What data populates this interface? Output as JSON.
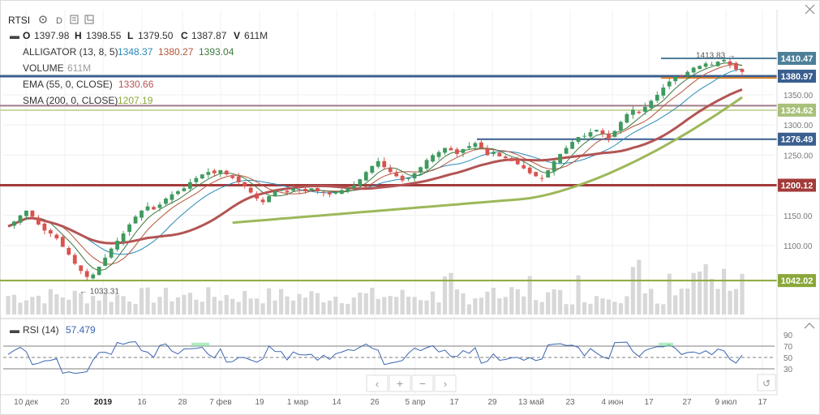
{
  "symbol": "RTSI",
  "interval": "D",
  "ohlc": {
    "o_label": "O",
    "o": "1397.98",
    "h_label": "H",
    "h": "1398.55",
    "l_label": "L",
    "l": "1379.50",
    "c_label": "C",
    "c": "1387.87",
    "v_label": "V",
    "v": "611M"
  },
  "indicators": {
    "alligator": {
      "label": "ALLIGATOR (13, 8, 5)",
      "v1": "1348.37",
      "v2": "1380.27",
      "v3": "1393.04"
    },
    "volume": {
      "label": "VOLUME",
      "value": "611M"
    },
    "ema": {
      "label": "EMA (55, 0, CLOSE)",
      "value": "1330.66"
    },
    "sma": {
      "label": "SMA (200, 0, CLOSE)",
      "value": "1207.19"
    }
  },
  "rsi": {
    "label": "RSI (14)",
    "value": "57.479"
  },
  "colors": {
    "up": "#3f9a5e",
    "down": "#d9534f",
    "alligator_jaw": "#2a8ab8",
    "alligator_teeth": "#b5553a",
    "alligator_lips": "#3c7a3f",
    "ema": "#b35454",
    "sma": "#9db85a",
    "volume": "#d8d8d8",
    "level_blue": "#3a5f8f",
    "level_steel": "#4d7f99",
    "level_red": "#a33a3a",
    "level_green": "#8aa83a",
    "rsi_line": "#3b64b0",
    "rsi_fill": "#7fe09a"
  },
  "chart_data": {
    "type": "candlestick",
    "price_axis": {
      "ticks": [
        1100,
        1150,
        1200,
        1250,
        1300,
        1350
      ],
      "ylim": [
        1025,
        1425
      ]
    },
    "time_axis": {
      "ticks": [
        "10 дек",
        "20",
        "2019",
        "16",
        "28",
        "7 фев",
        "19",
        "1 мар",
        "14",
        "26",
        "5 апр",
        "17",
        "29",
        "13 май",
        "23",
        "4 июн",
        "17",
        "27",
        "9 июл",
        "17"
      ]
    },
    "price_labels": [
      {
        "value": "1410.47",
        "color": "#4d7f99"
      },
      {
        "value": "1380.97",
        "color": "#3a5f8f"
      },
      {
        "value": "1324.62",
        "color": "#a8c07a"
      },
      {
        "value": "1276.49",
        "color": "#3a5f8f"
      },
      {
        "value": "1200.12",
        "color": "#a33a3a"
      },
      {
        "value": "1042.02",
        "color": "#8aa83a"
      }
    ],
    "levels": [
      {
        "price": 1410.47,
        "style": "short",
        "color": "#4d7f99"
      },
      {
        "price": 1380.97,
        "style": "full",
        "color": "#3a5f8f"
      },
      {
        "price": 1378,
        "style": "short",
        "color": "#d9822b"
      },
      {
        "price": 1332,
        "style": "full",
        "color": "#a37a88"
      },
      {
        "price": 1324.62,
        "style": "full",
        "color": "#c8d6a0"
      },
      {
        "price": 1276.49,
        "style": "partial",
        "color": "#3a5f8f"
      },
      {
        "price": 1200.12,
        "style": "full",
        "color": "#a33a3a"
      },
      {
        "price": 1042.02,
        "style": "full",
        "color": "#8aa83a"
      }
    ],
    "annotations": [
      {
        "text": "1413.83 →",
        "price": 1414,
        "target": "high"
      },
      {
        "text": "← 1033.31",
        "price": 1033.31,
        "target": "low"
      }
    ],
    "closes": [
      1132,
      1140,
      1150,
      1158,
      1148,
      1135,
      1125,
      1120,
      1112,
      1098,
      1085,
      1070,
      1058,
      1048,
      1052,
      1065,
      1080,
      1095,
      1108,
      1120,
      1135,
      1148,
      1158,
      1165,
      1160,
      1168,
      1178,
      1185,
      1190,
      1195,
      1205,
      1212,
      1218,
      1222,
      1220,
      1225,
      1218,
      1212,
      1205,
      1198,
      1188,
      1178,
      1172,
      1182,
      1190,
      1192,
      1188,
      1195,
      1192,
      1190,
      1195,
      1190,
      1188,
      1185,
      1188,
      1192,
      1195,
      1200,
      1210,
      1222,
      1232,
      1240,
      1230,
      1222,
      1215,
      1208,
      1212,
      1220,
      1230,
      1242,
      1250,
      1255,
      1262,
      1258,
      1252,
      1260,
      1265,
      1270,
      1262,
      1250,
      1255,
      1248,
      1245,
      1240,
      1235,
      1228,
      1220,
      1215,
      1212,
      1225,
      1240,
      1252,
      1262,
      1272,
      1280,
      1282,
      1288,
      1292,
      1285,
      1278,
      1290,
      1305,
      1318,
      1325,
      1320,
      1330,
      1340,
      1350,
      1362,
      1372,
      1380,
      1382,
      1388,
      1395,
      1398,
      1402,
      1400,
      1405,
      1408,
      1400,
      1392,
      1388
    ],
    "rsi_axis": {
      "ticks": [
        30,
        50,
        70,
        90
      ]
    },
    "rsi_bands": [
      30,
      50,
      70
    ]
  },
  "controls": {
    "prev": "‹",
    "zoom_in": "+",
    "zoom_out": "−",
    "next": "›",
    "reset": "↺"
  }
}
